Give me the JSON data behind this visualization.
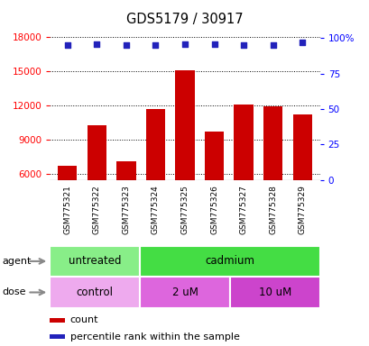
{
  "title": "GDS5179 / 30917",
  "samples": [
    "GSM775321",
    "GSM775322",
    "GSM775323",
    "GSM775324",
    "GSM775325",
    "GSM775326",
    "GSM775327",
    "GSM775328",
    "GSM775329"
  ],
  "counts": [
    6700,
    10300,
    7100,
    11700,
    15100,
    9700,
    12100,
    11900,
    11200
  ],
  "percentiles": [
    95,
    96,
    95,
    95,
    96,
    96,
    95,
    95,
    97
  ],
  "ylim_left": [
    5500,
    18500
  ],
  "ylim_right": [
    0,
    105
  ],
  "yticks_left": [
    6000,
    9000,
    12000,
    15000,
    18000
  ],
  "yticks_right": [
    0,
    25,
    50,
    75,
    100
  ],
  "bar_color": "#cc0000",
  "dot_color": "#2222bb",
  "agent_groups": [
    {
      "label": "untreated",
      "start": 0,
      "end": 3,
      "color": "#88ee88"
    },
    {
      "label": "cadmium",
      "start": 3,
      "end": 9,
      "color": "#44dd44"
    }
  ],
  "dose_groups": [
    {
      "label": "control",
      "start": 0,
      "end": 3,
      "color": "#eeaaee"
    },
    {
      "label": "2 uM",
      "start": 3,
      "end": 6,
      "color": "#dd66dd"
    },
    {
      "label": "10 uM",
      "start": 6,
      "end": 9,
      "color": "#cc44cc"
    }
  ],
  "legend_count_color": "#cc0000",
  "legend_dot_color": "#2222bb",
  "background_color": "#ffffff",
  "plot_bg_color": "#ffffff",
  "tick_label_bg": "#dddddd"
}
